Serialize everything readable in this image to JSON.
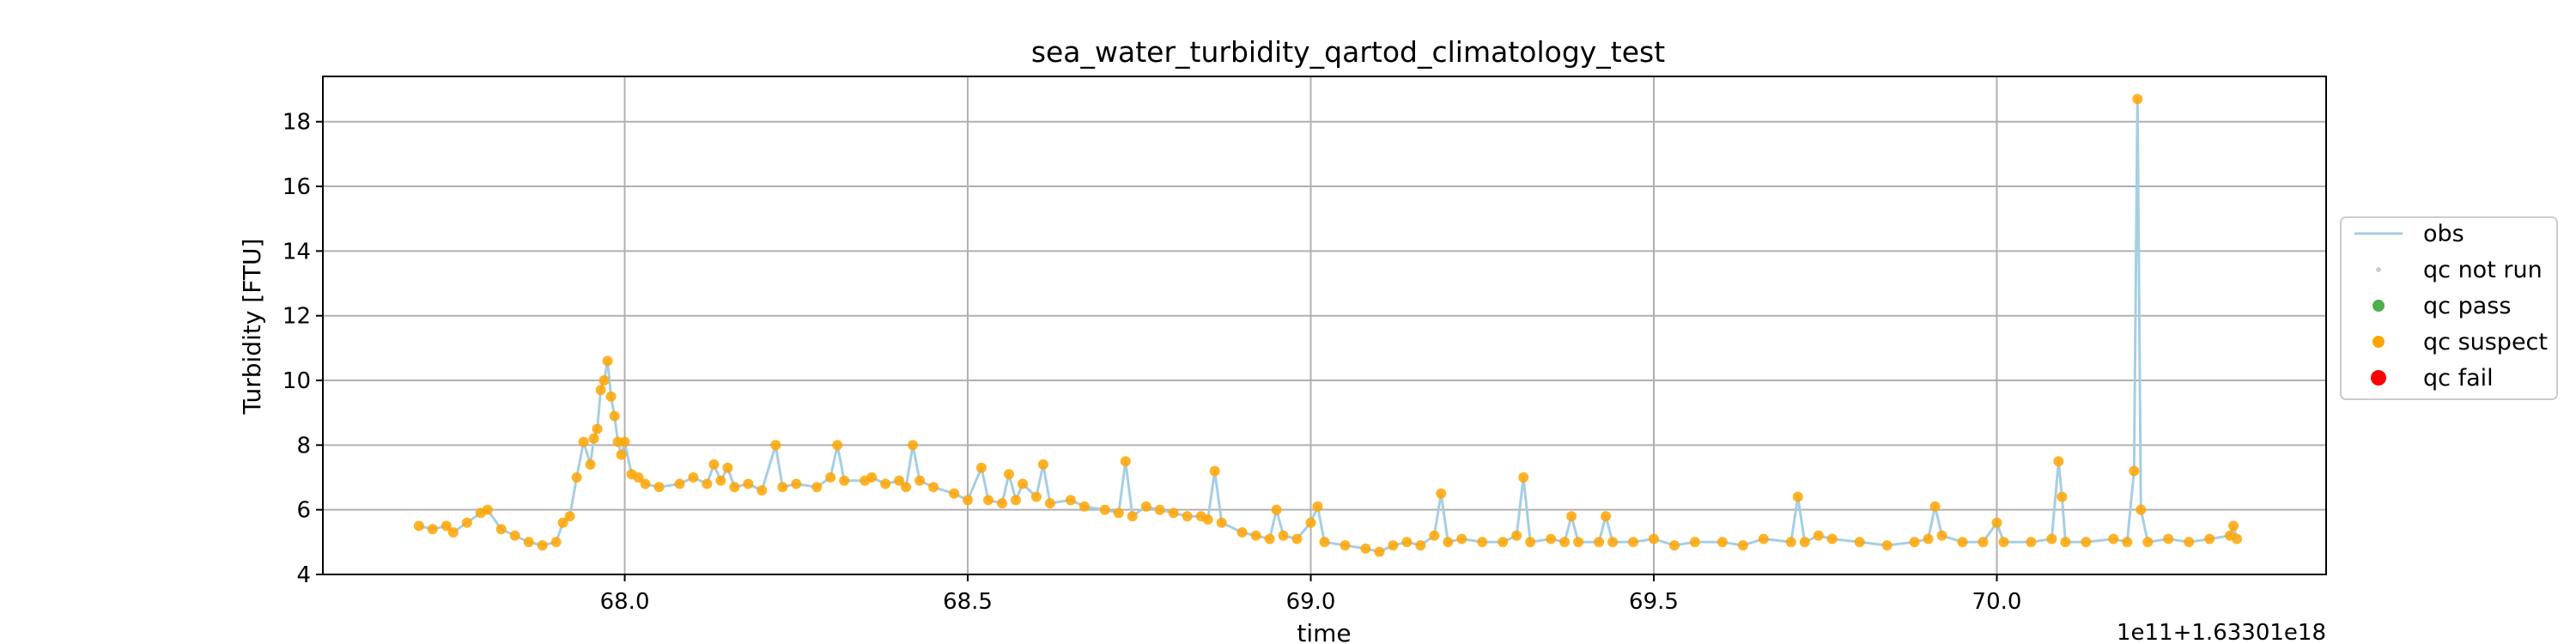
{
  "chart_data": {
    "type": "scatter",
    "title": "sea_water_turbidity_qartod_climatology_test",
    "xlabel": "time",
    "ylabel": "Turbidity [FTU]",
    "x_offset_label": "1e11+1.63301e18",
    "xlim": [
      67.56,
      70.48
    ],
    "ylim": [
      4,
      19.4
    ],
    "x_ticks": [
      68.0,
      68.5,
      69.0,
      69.5,
      70.0
    ],
    "x_tick_labels": [
      "68.0",
      "68.5",
      "69.0",
      "69.5",
      "70.0"
    ],
    "y_ticks": [
      4,
      6,
      8,
      10,
      12,
      14,
      16,
      18
    ],
    "y_tick_labels": [
      "4",
      "6",
      "8",
      "10",
      "12",
      "14",
      "16",
      "18"
    ],
    "grid": true,
    "legend_position": "right, outside plot",
    "legend": [
      {
        "label": "obs",
        "kind": "line",
        "color": "#a6cee3"
      },
      {
        "label": "qc not run",
        "kind": "marker",
        "color": "#cccccc"
      },
      {
        "label": "qc pass",
        "kind": "marker",
        "color": "#4daf4a"
      },
      {
        "label": "qc suspect",
        "kind": "marker",
        "color": "#ffa500"
      },
      {
        "label": "qc fail",
        "kind": "marker",
        "color": "#ff0000"
      }
    ],
    "series": [
      {
        "name": "obs",
        "style": "line",
        "color": "#a6cee3",
        "points": [
          [
            67.7,
            5.5
          ],
          [
            67.72,
            5.4
          ],
          [
            67.74,
            5.5
          ],
          [
            67.75,
            5.3
          ],
          [
            67.77,
            5.6
          ],
          [
            67.79,
            5.9
          ],
          [
            67.8,
            6.0
          ],
          [
            67.82,
            5.4
          ],
          [
            67.84,
            5.2
          ],
          [
            67.86,
            5.0
          ],
          [
            67.88,
            4.9
          ],
          [
            67.9,
            5.0
          ],
          [
            67.91,
            5.6
          ],
          [
            67.92,
            5.8
          ],
          [
            67.93,
            7.0
          ],
          [
            67.94,
            8.1
          ],
          [
            67.95,
            7.4
          ],
          [
            67.955,
            8.2
          ],
          [
            67.96,
            8.5
          ],
          [
            67.965,
            9.7
          ],
          [
            67.97,
            10.0
          ],
          [
            67.975,
            10.6
          ],
          [
            67.98,
            9.5
          ],
          [
            67.985,
            8.9
          ],
          [
            67.99,
            8.1
          ],
          [
            67.995,
            7.7
          ],
          [
            68.0,
            8.1
          ],
          [
            68.01,
            7.1
          ],
          [
            68.02,
            7.0
          ],
          [
            68.03,
            6.8
          ],
          [
            68.05,
            6.7
          ],
          [
            68.08,
            6.8
          ],
          [
            68.1,
            7.0
          ],
          [
            68.12,
            6.8
          ],
          [
            68.13,
            7.4
          ],
          [
            68.14,
            6.9
          ],
          [
            68.15,
            7.3
          ],
          [
            68.16,
            6.7
          ],
          [
            68.18,
            6.8
          ],
          [
            68.2,
            6.6
          ],
          [
            68.22,
            8.0
          ],
          [
            68.23,
            6.7
          ],
          [
            68.25,
            6.8
          ],
          [
            68.28,
            6.7
          ],
          [
            68.3,
            7.0
          ],
          [
            68.31,
            8.0
          ],
          [
            68.32,
            6.9
          ],
          [
            68.35,
            6.9
          ],
          [
            68.36,
            7.0
          ],
          [
            68.38,
            6.8
          ],
          [
            68.4,
            6.9
          ],
          [
            68.41,
            6.7
          ],
          [
            68.42,
            8.0
          ],
          [
            68.43,
            6.9
          ],
          [
            68.45,
            6.7
          ],
          [
            68.48,
            6.5
          ],
          [
            68.5,
            6.3
          ],
          [
            68.52,
            7.3
          ],
          [
            68.53,
            6.3
          ],
          [
            68.55,
            6.2
          ],
          [
            68.56,
            7.1
          ],
          [
            68.57,
            6.3
          ],
          [
            68.58,
            6.8
          ],
          [
            68.6,
            6.4
          ],
          [
            68.61,
            7.4
          ],
          [
            68.62,
            6.2
          ],
          [
            68.65,
            6.3
          ],
          [
            68.67,
            6.1
          ],
          [
            68.7,
            6.0
          ],
          [
            68.72,
            5.9
          ],
          [
            68.73,
            7.5
          ],
          [
            68.74,
            5.8
          ],
          [
            68.76,
            6.1
          ],
          [
            68.78,
            6.0
          ],
          [
            68.8,
            5.9
          ],
          [
            68.82,
            5.8
          ],
          [
            68.84,
            5.8
          ],
          [
            68.85,
            5.7
          ],
          [
            68.86,
            7.2
          ],
          [
            68.87,
            5.6
          ],
          [
            68.9,
            5.3
          ],
          [
            68.92,
            5.2
          ],
          [
            68.94,
            5.1
          ],
          [
            68.95,
            6.0
          ],
          [
            68.96,
            5.2
          ],
          [
            68.98,
            5.1
          ],
          [
            69.0,
            5.6
          ],
          [
            69.01,
            6.1
          ],
          [
            69.02,
            5.0
          ],
          [
            69.05,
            4.9
          ],
          [
            69.08,
            4.8
          ],
          [
            69.1,
            4.7
          ],
          [
            69.12,
            4.9
          ],
          [
            69.14,
            5.0
          ],
          [
            69.16,
            4.9
          ],
          [
            69.18,
            5.2
          ],
          [
            69.19,
            6.5
          ],
          [
            69.2,
            5.0
          ],
          [
            69.22,
            5.1
          ],
          [
            69.25,
            5.0
          ],
          [
            69.28,
            5.0
          ],
          [
            69.3,
            5.2
          ],
          [
            69.31,
            7.0
          ],
          [
            69.32,
            5.0
          ],
          [
            69.35,
            5.1
          ],
          [
            69.37,
            5.0
          ],
          [
            69.38,
            5.8
          ],
          [
            69.39,
            5.0
          ],
          [
            69.42,
            5.0
          ],
          [
            69.43,
            5.8
          ],
          [
            69.44,
            5.0
          ],
          [
            69.47,
            5.0
          ],
          [
            69.5,
            5.1
          ],
          [
            69.53,
            4.9
          ],
          [
            69.56,
            5.0
          ],
          [
            69.6,
            5.0
          ],
          [
            69.63,
            4.9
          ],
          [
            69.66,
            5.1
          ],
          [
            69.7,
            5.0
          ],
          [
            69.71,
            6.4
          ],
          [
            69.72,
            5.0
          ],
          [
            69.74,
            5.2
          ],
          [
            69.76,
            5.1
          ],
          [
            69.8,
            5.0
          ],
          [
            69.84,
            4.9
          ],
          [
            69.88,
            5.0
          ],
          [
            69.9,
            5.1
          ],
          [
            69.91,
            6.1
          ],
          [
            69.92,
            5.2
          ],
          [
            69.95,
            5.0
          ],
          [
            69.98,
            5.0
          ],
          [
            70.0,
            5.6
          ],
          [
            70.01,
            5.0
          ],
          [
            70.05,
            5.0
          ],
          [
            70.08,
            5.1
          ],
          [
            70.09,
            7.5
          ],
          [
            70.095,
            6.4
          ],
          [
            70.1,
            5.0
          ],
          [
            70.13,
            5.0
          ],
          [
            70.17,
            5.1
          ],
          [
            70.19,
            5.0
          ],
          [
            70.2,
            7.2
          ],
          [
            70.205,
            18.7
          ],
          [
            70.21,
            6.0
          ],
          [
            70.22,
            5.0
          ],
          [
            70.25,
            5.1
          ],
          [
            70.28,
            5.0
          ],
          [
            70.31,
            5.1
          ],
          [
            70.34,
            5.2
          ],
          [
            70.345,
            5.5
          ],
          [
            70.35,
            5.1
          ]
        ]
      },
      {
        "name": "qc suspect",
        "style": "marker",
        "color": "#ffa500",
        "points": [
          [
            67.7,
            5.5
          ],
          [
            67.72,
            5.4
          ],
          [
            67.74,
            5.5
          ],
          [
            67.75,
            5.3
          ],
          [
            67.77,
            5.6
          ],
          [
            67.79,
            5.9
          ],
          [
            67.8,
            6.0
          ],
          [
            67.82,
            5.4
          ],
          [
            67.84,
            5.2
          ],
          [
            67.86,
            5.0
          ],
          [
            67.88,
            4.9
          ],
          [
            67.9,
            5.0
          ],
          [
            67.91,
            5.6
          ],
          [
            67.92,
            5.8
          ],
          [
            67.93,
            7.0
          ],
          [
            67.94,
            8.1
          ],
          [
            67.95,
            7.4
          ],
          [
            67.955,
            8.2
          ],
          [
            67.96,
            8.5
          ],
          [
            67.965,
            9.7
          ],
          [
            67.97,
            10.0
          ],
          [
            67.975,
            10.6
          ],
          [
            67.98,
            9.5
          ],
          [
            67.985,
            8.9
          ],
          [
            67.99,
            8.1
          ],
          [
            67.995,
            7.7
          ],
          [
            68.0,
            8.1
          ],
          [
            68.01,
            7.1
          ],
          [
            68.02,
            7.0
          ],
          [
            68.03,
            6.8
          ],
          [
            68.05,
            6.7
          ],
          [
            68.08,
            6.8
          ],
          [
            68.1,
            7.0
          ],
          [
            68.12,
            6.8
          ],
          [
            68.13,
            7.4
          ],
          [
            68.14,
            6.9
          ],
          [
            68.15,
            7.3
          ],
          [
            68.16,
            6.7
          ],
          [
            68.18,
            6.8
          ],
          [
            68.2,
            6.6
          ],
          [
            68.22,
            8.0
          ],
          [
            68.23,
            6.7
          ],
          [
            68.25,
            6.8
          ],
          [
            68.28,
            6.7
          ],
          [
            68.3,
            7.0
          ],
          [
            68.31,
            8.0
          ],
          [
            68.32,
            6.9
          ],
          [
            68.35,
            6.9
          ],
          [
            68.36,
            7.0
          ],
          [
            68.38,
            6.8
          ],
          [
            68.4,
            6.9
          ],
          [
            68.41,
            6.7
          ],
          [
            68.42,
            8.0
          ],
          [
            68.43,
            6.9
          ],
          [
            68.45,
            6.7
          ],
          [
            68.48,
            6.5
          ],
          [
            68.5,
            6.3
          ],
          [
            68.52,
            7.3
          ],
          [
            68.53,
            6.3
          ],
          [
            68.55,
            6.2
          ],
          [
            68.56,
            7.1
          ],
          [
            68.57,
            6.3
          ],
          [
            68.58,
            6.8
          ],
          [
            68.6,
            6.4
          ],
          [
            68.61,
            7.4
          ],
          [
            68.62,
            6.2
          ],
          [
            68.65,
            6.3
          ],
          [
            68.67,
            6.1
          ],
          [
            68.7,
            6.0
          ],
          [
            68.72,
            5.9
          ],
          [
            68.73,
            7.5
          ],
          [
            68.74,
            5.8
          ],
          [
            68.76,
            6.1
          ],
          [
            68.78,
            6.0
          ],
          [
            68.8,
            5.9
          ],
          [
            68.82,
            5.8
          ],
          [
            68.84,
            5.8
          ],
          [
            68.85,
            5.7
          ],
          [
            68.86,
            7.2
          ],
          [
            68.87,
            5.6
          ],
          [
            68.9,
            5.3
          ],
          [
            68.92,
            5.2
          ],
          [
            68.94,
            5.1
          ],
          [
            68.95,
            6.0
          ],
          [
            68.96,
            5.2
          ],
          [
            68.98,
            5.1
          ],
          [
            69.0,
            5.6
          ],
          [
            69.01,
            6.1
          ],
          [
            69.02,
            5.0
          ],
          [
            69.05,
            4.9
          ],
          [
            69.08,
            4.8
          ],
          [
            69.1,
            4.7
          ],
          [
            69.12,
            4.9
          ],
          [
            69.14,
            5.0
          ],
          [
            69.16,
            4.9
          ],
          [
            69.18,
            5.2
          ],
          [
            69.19,
            6.5
          ],
          [
            69.2,
            5.0
          ],
          [
            69.22,
            5.1
          ],
          [
            69.25,
            5.0
          ],
          [
            69.28,
            5.0
          ],
          [
            69.3,
            5.2
          ],
          [
            69.31,
            7.0
          ],
          [
            69.32,
            5.0
          ],
          [
            69.35,
            5.1
          ],
          [
            69.37,
            5.0
          ],
          [
            69.38,
            5.8
          ],
          [
            69.39,
            5.0
          ],
          [
            69.42,
            5.0
          ],
          [
            69.43,
            5.8
          ],
          [
            69.44,
            5.0
          ],
          [
            69.47,
            5.0
          ],
          [
            69.5,
            5.1
          ],
          [
            69.53,
            4.9
          ],
          [
            69.56,
            5.0
          ],
          [
            69.6,
            5.0
          ],
          [
            69.63,
            4.9
          ],
          [
            69.66,
            5.1
          ],
          [
            69.7,
            5.0
          ],
          [
            69.71,
            6.4
          ],
          [
            69.72,
            5.0
          ],
          [
            69.74,
            5.2
          ],
          [
            69.76,
            5.1
          ],
          [
            69.8,
            5.0
          ],
          [
            69.84,
            4.9
          ],
          [
            69.88,
            5.0
          ],
          [
            69.9,
            5.1
          ],
          [
            69.91,
            6.1
          ],
          [
            69.92,
            5.2
          ],
          [
            69.95,
            5.0
          ],
          [
            69.98,
            5.0
          ],
          [
            70.0,
            5.6
          ],
          [
            70.01,
            5.0
          ],
          [
            70.05,
            5.0
          ],
          [
            70.08,
            5.1
          ],
          [
            70.09,
            7.5
          ],
          [
            70.095,
            6.4
          ],
          [
            70.1,
            5.0
          ],
          [
            70.13,
            5.0
          ],
          [
            70.17,
            5.1
          ],
          [
            70.19,
            5.0
          ],
          [
            70.2,
            7.2
          ],
          [
            70.205,
            18.7
          ],
          [
            70.21,
            6.0
          ],
          [
            70.22,
            5.0
          ],
          [
            70.25,
            5.1
          ],
          [
            70.28,
            5.0
          ],
          [
            70.31,
            5.1
          ],
          [
            70.34,
            5.2
          ],
          [
            70.345,
            5.5
          ],
          [
            70.35,
            5.1
          ]
        ]
      }
    ]
  }
}
